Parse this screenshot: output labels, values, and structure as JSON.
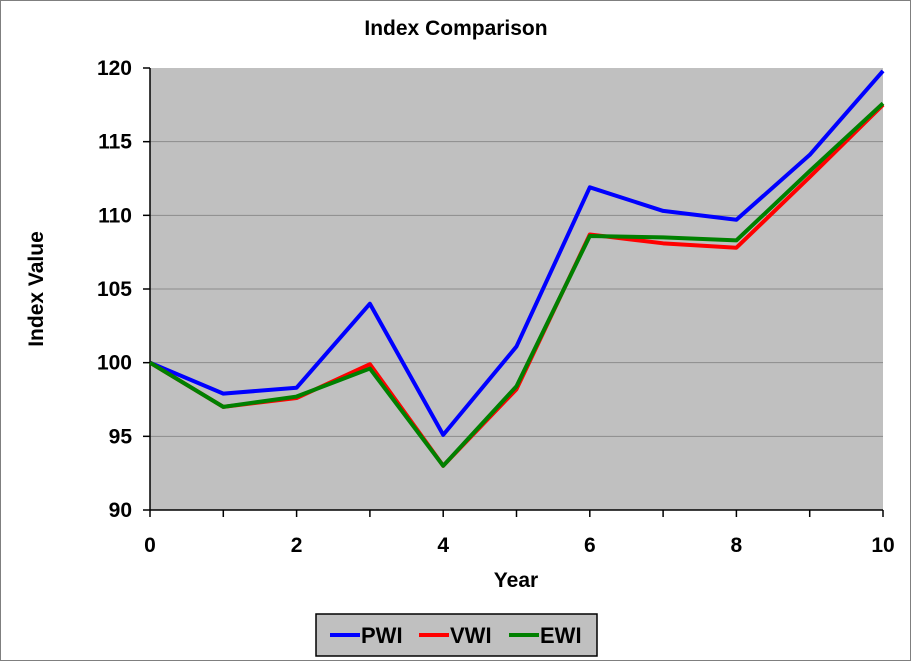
{
  "chart_data": {
    "type": "line",
    "title": "Index Comparison",
    "xlabel": "Year",
    "ylabel": "Index Value",
    "x": [
      0,
      1,
      2,
      3,
      4,
      5,
      6,
      7,
      8,
      9,
      10
    ],
    "xlim": [
      0,
      10
    ],
    "xticks": [
      "0",
      "2",
      "4",
      "6",
      "8",
      "10"
    ],
    "ylim": [
      90,
      120
    ],
    "yticks": [
      "90",
      "95",
      "100",
      "105",
      "110",
      "115",
      "120"
    ],
    "grid": true,
    "legend_position": "bottom",
    "plot_background": "#c0c0c0",
    "series": [
      {
        "name": "PWI",
        "color": "#0000ff",
        "values": [
          100,
          97.9,
          98.3,
          104,
          95.1,
          101.1,
          111.9,
          110.3,
          109.7,
          114.1,
          119.8
        ]
      },
      {
        "name": "VWI",
        "color": "#ff0000",
        "values": [
          100,
          97,
          97.6,
          99.9,
          93,
          98.2,
          108.7,
          108.1,
          107.8,
          112.6,
          117.5
        ]
      },
      {
        "name": "EWI",
        "color": "#008000",
        "values": [
          100,
          97,
          97.7,
          99.6,
          93,
          98.4,
          108.6,
          108.5,
          108.3,
          113,
          117.6
        ]
      }
    ]
  }
}
